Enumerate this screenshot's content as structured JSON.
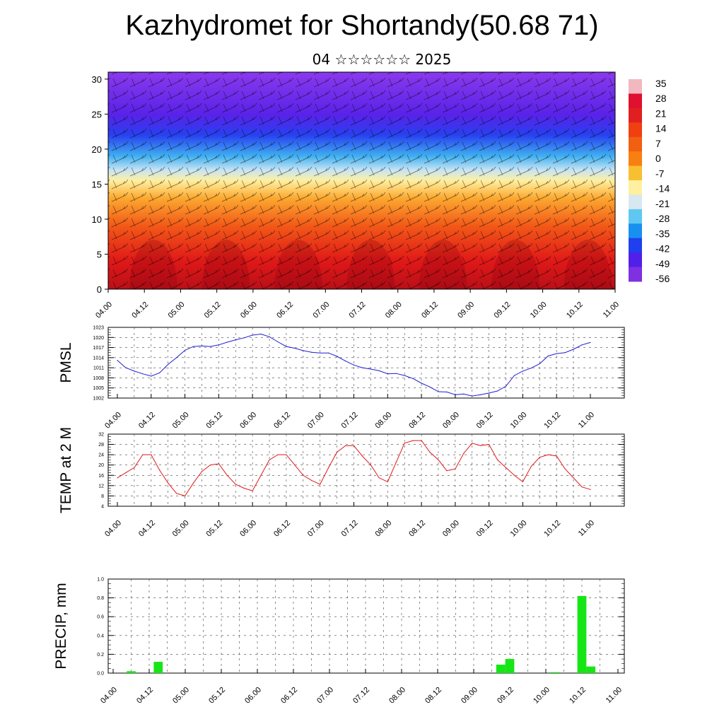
{
  "title": "Kazhydromet for Shortandy(50.68 71)",
  "subtitle": "04 ☆☆☆☆☆☆ 2025",
  "colors": {
    "pmsl_line": "#1f1fd0",
    "temp_line": "#e01a1a",
    "precip_bar": "#16e616",
    "grid": "#444444"
  },
  "time_labels": [
    "04.00",
    "04.12",
    "05.00",
    "05.12",
    "06.00",
    "06.12",
    "07.00",
    "07.12",
    "08.00",
    "08.12",
    "09.00",
    "09.12",
    "10.00",
    "10.12",
    "11.00"
  ],
  "chart_data": [
    {
      "type": "heatmap",
      "title": "",
      "ylim": [
        0,
        31
      ],
      "yticks": [
        0,
        5,
        10,
        15,
        20,
        25,
        30
      ],
      "colorbar": {
        "labels": [
          "35",
          "28",
          "21",
          "14",
          "7",
          "0",
          "-7",
          "-14",
          "-21",
          "-28",
          "-35",
          "-42",
          "-49",
          "-56"
        ],
        "colors": [
          "#f2b8c0",
          "#e01030",
          "#e02020",
          "#f04010",
          "#f06010",
          "#f88010",
          "#f8c030",
          "#fff0a0",
          "#d8e8f0",
          "#60c8f0",
          "#1890f0",
          "#2040f0",
          "#5020e8",
          "#8030e0"
        ]
      },
      "vertical_profile": [
        {
          "height": 0,
          "color": "#b81018"
        },
        {
          "height": 4,
          "color": "#e01818"
        },
        {
          "height": 9,
          "color": "#f25818"
        },
        {
          "height": 13,
          "color": "#fca830"
        },
        {
          "height": 15.5,
          "color": "#fff0a0"
        },
        {
          "height": 17,
          "color": "#c8e4f4"
        },
        {
          "height": 19,
          "color": "#40b0f0"
        },
        {
          "height": 22,
          "color": "#2840f0"
        },
        {
          "height": 25,
          "color": "#5a22e8"
        },
        {
          "height": 31,
          "color": "#8a3aec"
        }
      ]
    },
    {
      "type": "line",
      "ylabel": "PMSL",
      "ylim": [
        1002,
        1023
      ],
      "yticks": [
        1002,
        1005,
        1008,
        1011,
        1014,
        1017,
        1020,
        1023
      ],
      "x": [
        0,
        3,
        6,
        9,
        12,
        15,
        18,
        21,
        24,
        27,
        30,
        33,
        36,
        39,
        42,
        45,
        48,
        51,
        54,
        57,
        60,
        63,
        66,
        69,
        72,
        75,
        78,
        81,
        84,
        87,
        90,
        93,
        96,
        99,
        102,
        105,
        108,
        111,
        114,
        117,
        120,
        123,
        126,
        129,
        132,
        135,
        138,
        141,
        144,
        147,
        150,
        153,
        156,
        159,
        162,
        165,
        168
      ],
      "series": [
        {
          "name": "",
          "values": [
            1013.2,
            1011.0,
            1010.0,
            1009.2,
            1008.5,
            1009.5,
            1012.0,
            1014.0,
            1016.2,
            1017.3,
            1017.5,
            1017.3,
            1017.8,
            1018.6,
            1019.3,
            1019.9,
            1020.7,
            1021.0,
            1020.2,
            1018.7,
            1017.3,
            1016.8,
            1016.1,
            1015.6,
            1015.4,
            1015.4,
            1014.4,
            1013.0,
            1011.8,
            1011.0,
            1010.6,
            1010.1,
            1009.2,
            1009.3,
            1008.7,
            1007.8,
            1006.4,
            1005.3,
            1003.9,
            1003.8,
            1003.0,
            1003.2,
            1002.6,
            1003.0,
            1003.5,
            1004.1,
            1005.5,
            1008.7,
            1010.0,
            1010.9,
            1012.2,
            1014.5,
            1015.2,
            1015.5,
            1016.5,
            1017.8,
            1018.5
          ]
        }
      ]
    },
    {
      "type": "line",
      "ylabel": "TEMP at 2 M",
      "ylim": [
        4,
        32
      ],
      "yticks": [
        4,
        8,
        12,
        16,
        20,
        24,
        28,
        32
      ],
      "x": [
        0,
        3,
        6,
        9,
        12,
        15,
        18,
        21,
        24,
        27,
        30,
        33,
        36,
        39,
        42,
        45,
        48,
        51,
        54,
        57,
        60,
        63,
        66,
        69,
        72,
        75,
        78,
        81,
        84,
        87,
        90,
        93,
        96,
        99,
        102,
        105,
        108,
        111,
        114,
        117,
        120,
        123,
        126,
        129,
        132,
        135,
        138,
        141,
        144,
        147,
        150,
        153,
        156,
        159,
        162,
        165,
        168
      ],
      "series": [
        {
          "name": "",
          "values": [
            15.0,
            17.0,
            19.0,
            24.0,
            24.0,
            18.0,
            13.0,
            9.0,
            8.0,
            13.0,
            17.5,
            20.0,
            20.5,
            16.0,
            12.5,
            11.0,
            10.0,
            16.0,
            22.0,
            24.0,
            24.0,
            20.0,
            16.0,
            14.0,
            12.5,
            19.0,
            25.0,
            27.5,
            27.5,
            23.5,
            20.0,
            15.0,
            13.5,
            21.0,
            28.5,
            29.5,
            29.5,
            25.0,
            22.0,
            17.8,
            18.5,
            24.5,
            28.5,
            27.5,
            28.0,
            22.0,
            19.0,
            16.0,
            13.5,
            19.5,
            23.0,
            24.0,
            23.5,
            18.5,
            15.0,
            11.5,
            10.5
          ]
        }
      ]
    },
    {
      "type": "bar",
      "ylabel": "PRECIP, mm",
      "ylim": [
        0,
        1.0
      ],
      "yticks": [
        0.0,
        0.2,
        0.4,
        0.6,
        0.8,
        1.0
      ],
      "ytick_labels": [
        "0.0",
        "0.2",
        "0.4",
        "0.6",
        "0.8",
        "1.0"
      ],
      "x": [
        6,
        15,
        129,
        132,
        147,
        156,
        159
      ],
      "series": [
        {
          "name": "",
          "values": [
            0.02,
            0.12,
            0.09,
            0.15,
            0.01,
            0.82,
            0.07
          ]
        }
      ]
    }
  ]
}
